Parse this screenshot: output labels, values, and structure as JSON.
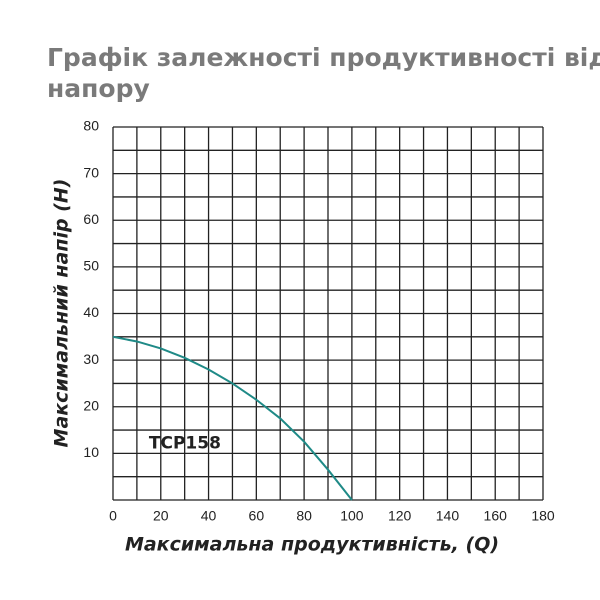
{
  "chart_data": {
    "type": "line",
    "title": [
      "Графік залежності продуктивності від",
      "напору"
    ],
    "x_label": "Максимальна продуктивність, (Q)",
    "y_label": "Максимальний напір (H)",
    "x": [
      0,
      10,
      20,
      30,
      40,
      50,
      60,
      70,
      80,
      90,
      100
    ],
    "series": [
      {
        "name": "TCP158",
        "color": "#1f8a87",
        "values": [
          35,
          34,
          32.5,
          30.5,
          28,
          25,
          21.5,
          17.5,
          12.5,
          6.5,
          0
        ]
      }
    ],
    "xlim": [
      0,
      180
    ],
    "xticks": [
      0,
      20,
      40,
      60,
      80,
      100,
      120,
      140,
      160,
      180
    ],
    "ylim": [
      0,
      80
    ],
    "yticks": [
      10,
      20,
      30,
      40,
      50,
      60,
      70,
      80
    ],
    "xgrid": [
      0,
      10,
      20,
      30,
      40,
      50,
      60,
      70,
      80,
      90,
      100,
      110,
      120,
      130,
      140,
      150,
      160,
      170,
      180
    ],
    "ygrid": [
      0,
      5,
      10,
      15,
      20,
      25,
      30,
      35,
      40,
      45,
      50,
      55,
      60,
      65,
      70,
      75,
      80
    ],
    "grid": true
  }
}
